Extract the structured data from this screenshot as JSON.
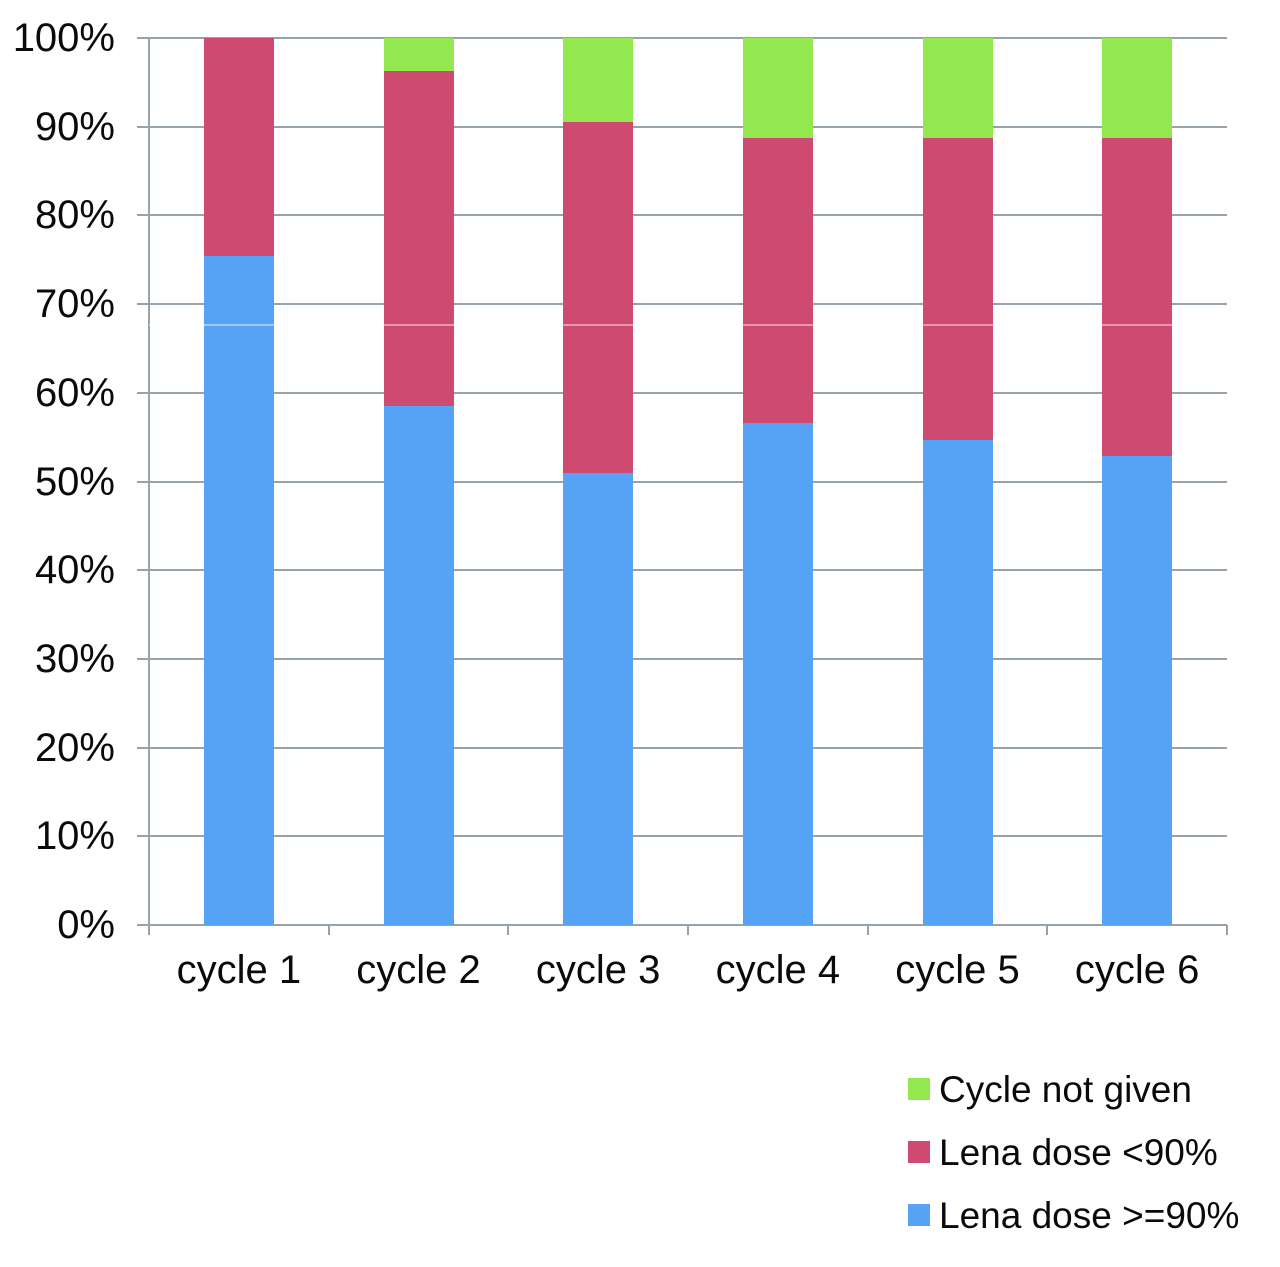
{
  "chart_data": {
    "type": "bar",
    "stacked": true,
    "title": "",
    "xlabel": "",
    "ylabel": "",
    "categories": [
      "cycle 1",
      "cycle 2",
      "cycle 3",
      "cycle 4",
      "cycle 5",
      "cycle 6"
    ],
    "series": [
      {
        "name": "Lena dose >=90%",
        "color": "#56a2f5",
        "values": [
          75.47,
          58.49,
          50.94,
          56.6,
          54.72,
          52.83
        ]
      },
      {
        "name": "Lena dose <90%",
        "color": "#ce4a70",
        "values": [
          24.53,
          37.74,
          39.62,
          32.08,
          33.96,
          35.85
        ]
      },
      {
        "name": "Cycle not given",
        "color": "#93e74f",
        "values": [
          0,
          3.77,
          9.43,
          11.32,
          11.32,
          11.32
        ]
      }
    ],
    "yticks": [
      "0%",
      "10%",
      "20%",
      "30%",
      "40%",
      "50%",
      "60%",
      "70%",
      "80%",
      "90%",
      "100%"
    ],
    "ylim": [
      0,
      100
    ],
    "grid": true,
    "gridline_color": "#96a3ac",
    "legend_position": "bottom-right",
    "legend_order": [
      "Cycle not given",
      "Lena dose <90%",
      "Lena dose >=90%"
    ]
  }
}
